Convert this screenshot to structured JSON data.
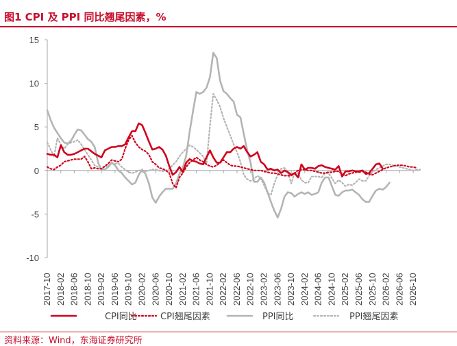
{
  "title": "图1  CPI 及 PPI 同比翘尾因素，%",
  "source": "资料来源：Wind，东海证券研究所",
  "colors": {
    "accent": "#c8102e",
    "cpi": "#d0021b",
    "ppi": "#b4b4b4",
    "axis": "#a6a6a6"
  },
  "chart_data": {
    "type": "line",
    "title": "CPI 及 PPI 同比翘尾因素，%",
    "xlabel": "",
    "ylabel": "",
    "ylim": [
      -10,
      15
    ],
    "yticks": [
      "15",
      "10",
      "5",
      "0",
      "-5",
      "-10"
    ],
    "x_start": "2017-10",
    "x_end": "2026-12",
    "xticks": [
      "2017-10",
      "2018-02",
      "2018-06",
      "2018-10",
      "2019-02",
      "2019-06",
      "2019-10",
      "2020-02",
      "2020-06",
      "2020-10",
      "2021-02",
      "2021-06",
      "2021-10",
      "2022-02",
      "2022-06",
      "2022-10",
      "2023-02",
      "2023-06",
      "2023-10",
      "2024-02",
      "2024-06",
      "2024-10",
      "2025-02",
      "2025-06",
      "2025-10",
      "2026-02",
      "2026-06",
      "2026-10"
    ],
    "legend": [
      "CPI同比",
      "CPI翘尾因素",
      "PPI同比",
      "PPI翘尾因素"
    ],
    "series": [
      {
        "name": "CPI同比",
        "style": "solid-red",
        "start": "2017-10",
        "values": [
          1.9,
          1.8,
          1.8,
          1.5,
          2.9,
          2.1,
          1.8,
          1.8,
          1.9,
          2.1,
          2.3,
          2.5,
          2.5,
          2.2,
          1.9,
          1.7,
          1.5,
          2.3,
          2.5,
          2.7,
          2.7,
          2.8,
          2.8,
          3.0,
          3.8,
          4.5,
          4.5,
          5.4,
          5.2,
          4.3,
          3.3,
          2.4,
          2.5,
          2.7,
          2.4,
          1.7,
          0.5,
          -0.5,
          -0.2,
          0.4,
          -0.2,
          0.9,
          1.3,
          1.1,
          1.0,
          0.8,
          0.7,
          1.5,
          2.3,
          1.5,
          0.9,
          0.9,
          1.5,
          2.1,
          2.1,
          2.5,
          2.7,
          2.5,
          2.8,
          2.1,
          1.6,
          1.8,
          2.1,
          1.0,
          0.7,
          0.1,
          0.2,
          0.0,
          0.1,
          -0.3,
          0.0,
          -0.2,
          -0.5,
          -0.3,
          -0.8,
          0.7,
          0.1,
          0.3,
          0.3,
          0.2,
          0.5,
          0.6,
          0.4,
          0.3,
          0.2,
          0.1,
          0.5,
          -0.7,
          -0.1,
          -0.1,
          0.0,
          -0.1,
          -0.1,
          0.0,
          -0.4,
          -0.3,
          0.2,
          0.7,
          0.8,
          0.2
        ]
      },
      {
        "name": "CPI翘尾因素",
        "style": "dotted-red",
        "start": "2017-10",
        "values": [
          0.4,
          0.2,
          0.1,
          0.4,
          0.6,
          1.0,
          1.1,
          1.2,
          1.3,
          1.3,
          1.3,
          1.6,
          1.0,
          0.2,
          0.3,
          0.2,
          0.2,
          0.5,
          0.8,
          1.2,
          1.1,
          1.0,
          1.3,
          2.5,
          3.5,
          4.0,
          3.2,
          2.7,
          2.4,
          2.2,
          1.8,
          1.0,
          0.7,
          0.3,
          0.2,
          0.0,
          -0.3,
          -1.5,
          -2.0,
          -0.8,
          -0.3,
          0.4,
          0.9,
          1.2,
          1.5,
          1.2,
          1.0,
          0.7,
          0.5,
          0.4,
          0.6,
          0.9,
          1.2,
          0.9,
          0.6,
          0.5,
          0.5,
          0.4,
          0.3,
          0.2,
          0.1,
          0.0,
          0.0,
          0.0,
          -0.1,
          -0.2,
          -0.3,
          -0.3,
          -0.4,
          -0.5,
          -0.6,
          -0.6,
          -0.6,
          -0.3,
          0.0,
          0.1,
          0.1,
          0.0,
          0.0,
          -0.1,
          -0.2,
          -0.3,
          -0.3,
          -0.2,
          -0.2,
          -0.1,
          -0.1,
          -0.4,
          -0.6,
          -0.4,
          -0.3,
          -0.2,
          -0.2,
          -0.1,
          -0.2,
          -0.4,
          -0.5,
          -0.3,
          -0.1,
          0.1,
          0.3,
          0.4,
          0.5,
          0.6,
          0.6,
          0.6,
          0.5,
          0.4,
          0.4,
          0.3
        ]
      },
      {
        "name": "PPI同比",
        "style": "solid-grey",
        "start": "2017-10",
        "values": [
          6.9,
          5.8,
          4.9,
          4.3,
          3.7,
          3.2,
          3.1,
          3.4,
          4.1,
          4.7,
          4.6,
          4.1,
          3.6,
          3.3,
          2.7,
          0.9,
          0.1,
          0.1,
          0.4,
          0.9,
          0.6,
          0.0,
          -0.3,
          -0.8,
          -1.2,
          -1.6,
          -1.4,
          -0.5,
          0.1,
          -0.4,
          -1.5,
          -3.1,
          -3.7,
          -3.0,
          -2.5,
          -2.1,
          -2.1,
          -2.1,
          -1.5,
          -0.4,
          0.3,
          1.7,
          4.4,
          6.8,
          9.0,
          8.8,
          9.0,
          9.5,
          10.7,
          13.5,
          12.9,
          10.3,
          9.1,
          8.8,
          8.3,
          7.9,
          6.4,
          6.1,
          4.2,
          2.3,
          0.9,
          -1.3,
          -1.3,
          -0.8,
          -1.4,
          -2.5,
          -3.6,
          -4.6,
          -5.4,
          -4.4,
          -3.0,
          -2.5,
          -2.6,
          -3.0,
          -2.7,
          -2.5,
          -2.7,
          -2.5,
          -2.8,
          -2.7,
          -2.5,
          -1.4,
          -0.8,
          -0.8,
          -1.8,
          -2.8,
          -2.9,
          -2.5,
          -2.3,
          -2.3,
          -2.2,
          -2.5,
          -2.8,
          -3.3,
          -3.6,
          -3.6,
          -2.9,
          -2.3,
          -2.1,
          -2.2,
          -1.9,
          -1.4
        ]
      },
      {
        "name": "PPI翘尾因素",
        "style": "dotted-grey",
        "start": "2017-10",
        "values": [
          3.2,
          2.4,
          1.6,
          3.7,
          3.0,
          2.5,
          3.0,
          3.2,
          3.3,
          3.5,
          3.0,
          2.4,
          1.8,
          1.2,
          0.6,
          0.4,
          0.2,
          0.4,
          0.6,
          0.8,
          0.8,
          0.8,
          0.4,
          0.1,
          -0.2,
          -0.3,
          -0.2,
          0.0,
          0.0,
          -0.1,
          0.0,
          0.1,
          0.1,
          0.0,
          -0.1,
          0.0,
          0.2,
          0.6,
          1.0,
          1.6,
          2.1,
          2.5,
          2.9,
          2.7,
          2.4,
          2.0,
          1.6,
          0.8,
          5.1,
          8.8,
          8.1,
          7.3,
          6.0,
          5.0,
          4.0,
          3.0,
          2.1,
          1.0,
          -0.5,
          -1.0,
          -1.2,
          -1.0,
          -0.6,
          -0.9,
          -1.7,
          -2.6,
          -2.8,
          -1.5,
          -0.5,
          0.2,
          0.3,
          -0.2,
          -1.5,
          -0.3,
          -0.3,
          -1.1,
          -1.4,
          -1.4,
          -0.7,
          -0.7,
          -0.7,
          -0.8,
          -0.3,
          -0.3,
          -0.9,
          -1.5,
          -1.1,
          -1.4,
          -1.8,
          -1.6,
          -1.7,
          -1.4,
          -1.0,
          -1.2,
          -1.2,
          -0.6,
          -0.2,
          0.1,
          0.3,
          0.5,
          0.7,
          0.7,
          0.6,
          0.5,
          0.4,
          0.3,
          0.2,
          0.1,
          0.0,
          0.1,
          0.1
        ]
      }
    ]
  }
}
